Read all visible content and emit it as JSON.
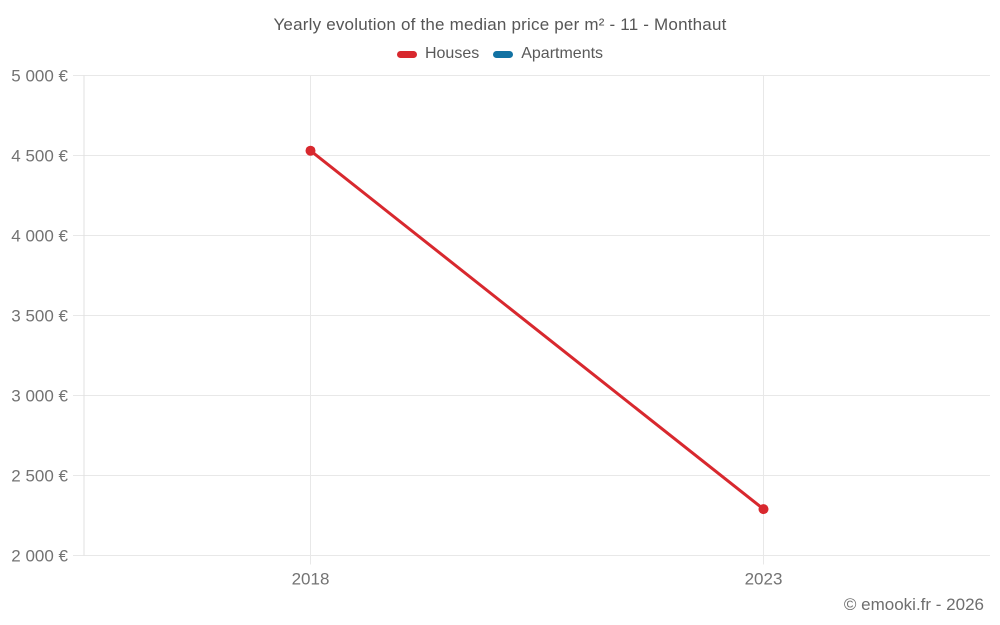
{
  "chart_data": {
    "type": "line",
    "title": "Yearly evolution of the median price per m² - 11 - Monthaut",
    "categories": [
      "2018",
      "2023"
    ],
    "series": [
      {
        "name": "Houses",
        "color": "#d8282e",
        "values": [
          4530,
          2290
        ]
      },
      {
        "name": "Apartments",
        "color": "#1272a3",
        "values": [
          null,
          null
        ]
      }
    ],
    "y_axis": {
      "min": 2000,
      "max": 5000,
      "tick_step": 500,
      "tick_labels": [
        "2 000 €",
        "2 500 €",
        "3 000 €",
        "3 500 €",
        "4 000 €",
        "4 500 €",
        "5 000 €"
      ],
      "unit": "€"
    },
    "x_axis": {
      "tick_labels": [
        "2018",
        "2023"
      ]
    },
    "legend_position": "top",
    "grid": true,
    "colors": {
      "gridline": "#e8e8e8",
      "axis_line": "#e0e0e0",
      "axis_text": "#737373"
    }
  },
  "footer": {
    "attribution": "© emooki.fr - 2026"
  }
}
